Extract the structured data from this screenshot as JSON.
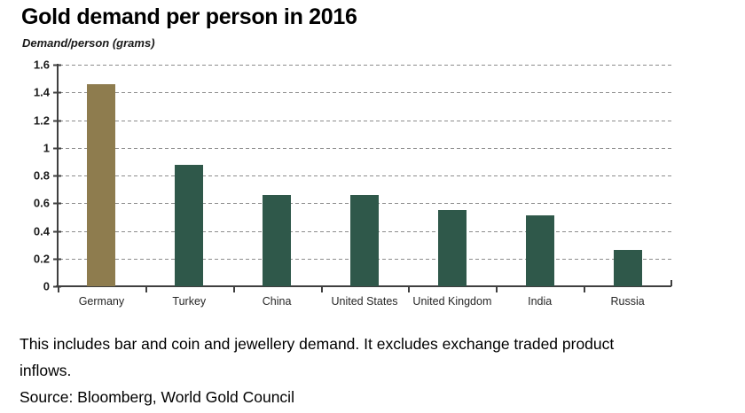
{
  "chart": {
    "title": "Gold demand per person in 2016",
    "ylabel": "Demand/person (grams)",
    "footnote_lines": [
      "This includes bar and coin and jewellery demand. It excludes exchange traded product",
      "inflows."
    ],
    "source": "Source: Bloomberg, World Gold Council"
  },
  "chart_data": {
    "type": "bar",
    "title": "Gold demand per person in 2016",
    "ylabel": "Demand/person (grams)",
    "categories": [
      "Germany",
      "Turkey",
      "China",
      "United States",
      "United Kingdom",
      "India",
      "Russia"
    ],
    "values": [
      1.46,
      0.88,
      0.66,
      0.66,
      0.55,
      0.51,
      0.26
    ],
    "ylim": [
      0,
      1.6
    ],
    "ytick_step": 0.2,
    "ytick_labels": [
      "0",
      "0.2",
      "0.4",
      "0.6",
      "0.8",
      "1",
      "1.2",
      "1.4",
      "1.6"
    ],
    "grid": "horizontal-dashed",
    "legend": "none",
    "bar_colors": [
      "#8E7C4E",
      "#2F584A",
      "#2F584A",
      "#2F584A",
      "#2F584A",
      "#2F584A",
      "#2F584A"
    ],
    "highlight_color": "#8E7C4E",
    "default_color": "#2F584A",
    "axis_color": "#3F3F3F",
    "gridline_color": "#8C8C8C"
  }
}
